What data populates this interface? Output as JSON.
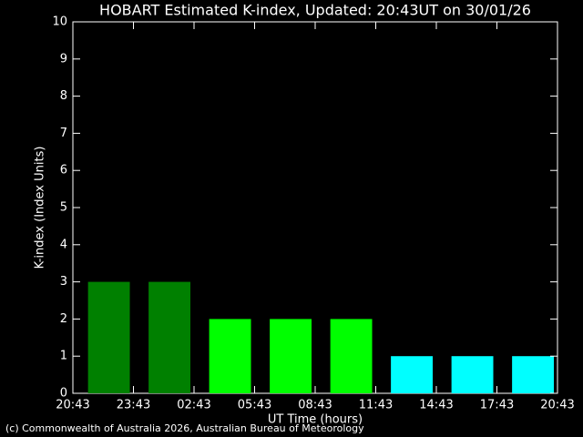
{
  "chart_data": {
    "type": "bar",
    "title": "HOBART Estimated K-index, Updated: 20:43UT on 30/01/26",
    "x_label": "UT Time (hours)",
    "y_label": "K-index (Index Units)",
    "footer": "(c) Commonwealth of Australia 2026, Australian Bureau of Meteorology",
    "categories": [
      null,
      null,
      null,
      null,
      null,
      null,
      null,
      null
    ],
    "values": [
      3,
      3,
      2,
      2,
      2,
      1,
      1,
      1
    ],
    "colors": [
      "#008000",
      "#008000",
      "#00ff00",
      "#00ff00",
      "#00ff00",
      "#00ffff",
      "#00ffff",
      "#00ffff"
    ],
    "xlim": [
      0,
      24
    ],
    "xticks": [
      {
        "value": 0,
        "label": "20:43"
      },
      {
        "value": 3,
        "label": "23:43"
      },
      {
        "value": 6,
        "label": "02:43"
      },
      {
        "value": 9,
        "label": "05:43"
      },
      {
        "value": 12,
        "label": "08:43"
      },
      {
        "value": 15,
        "label": "11:43"
      },
      {
        "value": 18,
        "label": "14:43"
      },
      {
        "value": 21,
        "label": "17:43"
      },
      {
        "value": 24,
        "label": "20:43"
      }
    ],
    "ylim": [
      0,
      10
    ],
    "yticks": [
      0,
      1,
      2,
      3,
      4,
      5,
      6,
      7,
      8,
      9,
      10
    ]
  }
}
